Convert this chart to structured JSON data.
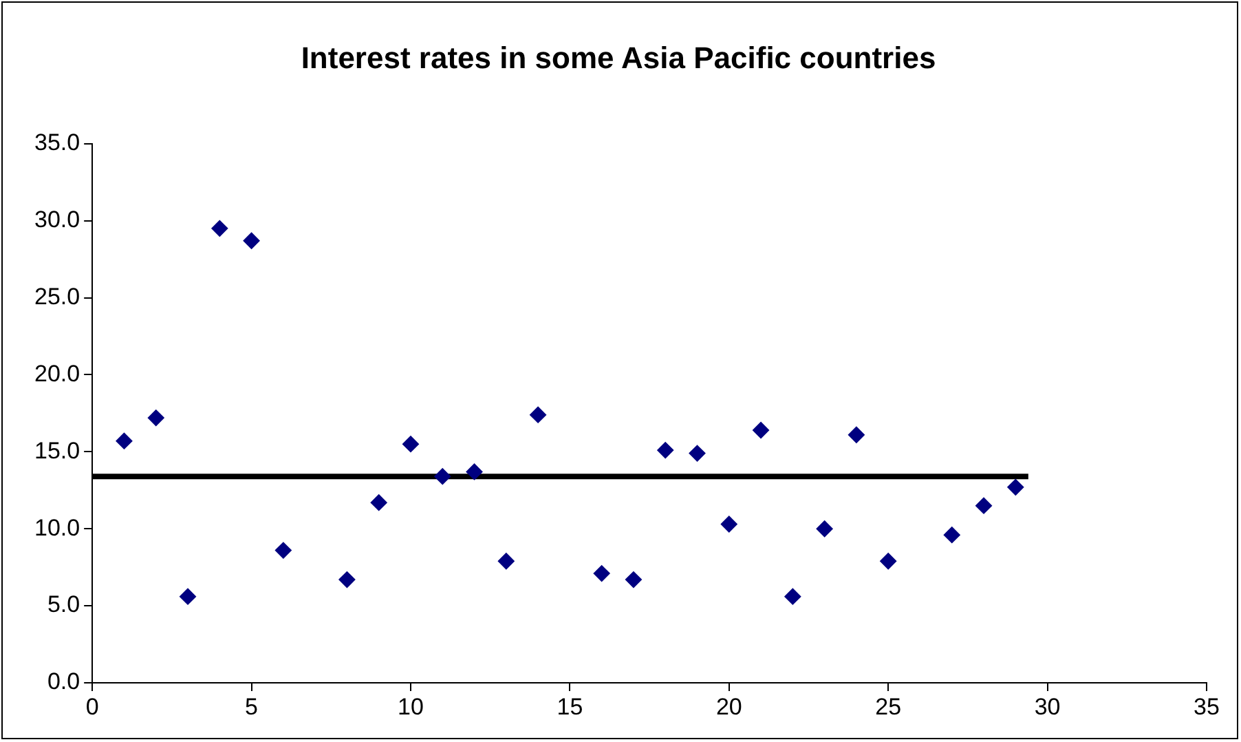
{
  "chart_data": {
    "type": "scatter",
    "title": "Interest rates in some Asia Pacific countries",
    "x": [
      1,
      2,
      3,
      4,
      5,
      6,
      8,
      9,
      10,
      11,
      12,
      13,
      14,
      16,
      17,
      18,
      19,
      20,
      21,
      22,
      23,
      24,
      25,
      27,
      28,
      29
    ],
    "series": [
      {
        "type": "scatter",
        "color": "#000080",
        "marker": "diamond",
        "values": [
          15.7,
          17.2,
          5.6,
          29.5,
          28.7,
          8.6,
          6.7,
          11.7,
          15.5,
          13.4,
          13.7,
          7.9,
          17.4,
          7.1,
          6.7,
          15.1,
          14.9,
          10.3,
          16.4,
          5.6,
          10.0,
          16.1,
          7.9,
          9.6,
          11.5,
          12.7
        ]
      },
      {
        "type": "line",
        "color": "#000000",
        "marker": "none",
        "x": [
          0,
          29.4
        ],
        "values": [
          13.4,
          13.4
        ]
      }
    ],
    "xlim": [
      0,
      35
    ],
    "xticks": [
      0,
      5,
      10,
      15,
      20,
      25,
      30,
      35
    ],
    "ylim": [
      0,
      35
    ],
    "yticks": [
      {
        "value": 0,
        "label": "0.0"
      },
      {
        "value": 5,
        "label": "5.0"
      },
      {
        "value": 10,
        "label": "10.0"
      },
      {
        "value": 15,
        "label": "15.0"
      },
      {
        "value": 20,
        "label": "20.0"
      },
      {
        "value": 25,
        "label": "25.0"
      },
      {
        "value": 30,
        "label": "30.0"
      },
      {
        "value": 35,
        "label": "35.0"
      }
    ],
    "grid": false,
    "legend": false
  }
}
